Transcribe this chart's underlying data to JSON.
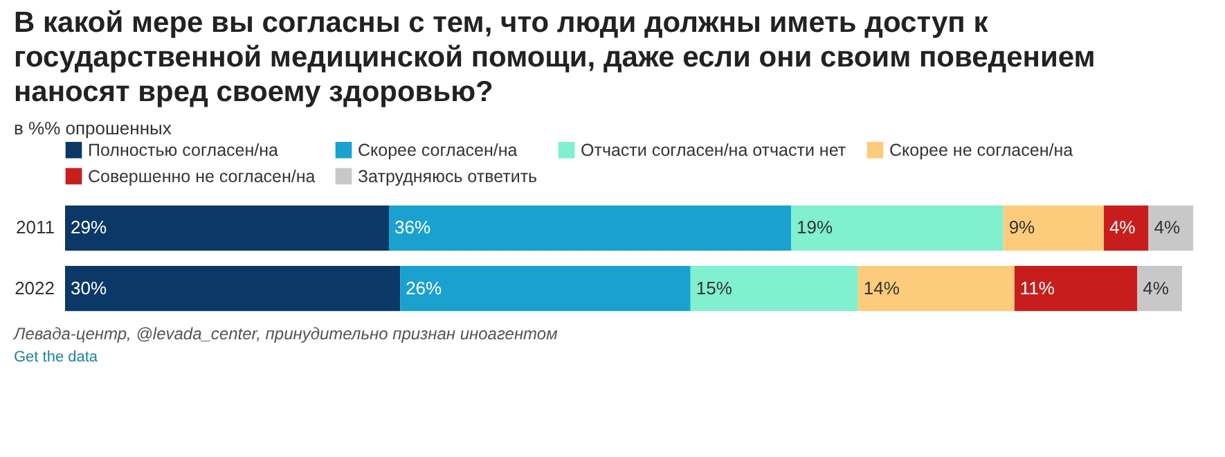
{
  "chart_data": {
    "type": "bar",
    "orientation": "horizontal",
    "stacked": true,
    "title": "В какой мере вы согласны с тем, что люди должны иметь доступ к государственной медицинской помощи, даже если они своим поведением наносят вред своему здоровью?",
    "subtitle": "в %% опрошенных",
    "categories": [
      "2011",
      "2022"
    ],
    "series": [
      {
        "name": "Полностью согласен/на",
        "color": "#0b3866",
        "values": [
          29,
          30
        ],
        "value_labels": [
          "29%",
          "30%"
        ]
      },
      {
        "name": "Скорее согласен/на",
        "color": "#1aa1cf",
        "values": [
          36,
          26
        ],
        "value_labels": [
          "36%",
          "26%"
        ]
      },
      {
        "name": "Отчасти согласен/на отчасти нет",
        "color": "#80f0cf",
        "values": [
          19,
          15
        ],
        "value_labels": [
          "19%",
          "15%"
        ]
      },
      {
        "name": "Скорее не согласен/на",
        "color": "#fccb7b",
        "values": [
          9,
          14
        ],
        "value_labels": [
          "9%",
          "14%"
        ]
      },
      {
        "name": "Совершенно не согласен/на",
        "color": "#c71e1d",
        "values": [
          4,
          11
        ],
        "value_labels": [
          "4%",
          "11%"
        ]
      },
      {
        "name": "Затрудняюсь ответить",
        "color": "#c8c8c8",
        "values": [
          4,
          4
        ],
        "value_labels": [
          "4%",
          "4%"
        ]
      }
    ],
    "legend": "top left",
    "annotations": [
      "Левада-центр, @levada_center, принудительно признан иноагентом",
      "Get the data"
    ]
  }
}
